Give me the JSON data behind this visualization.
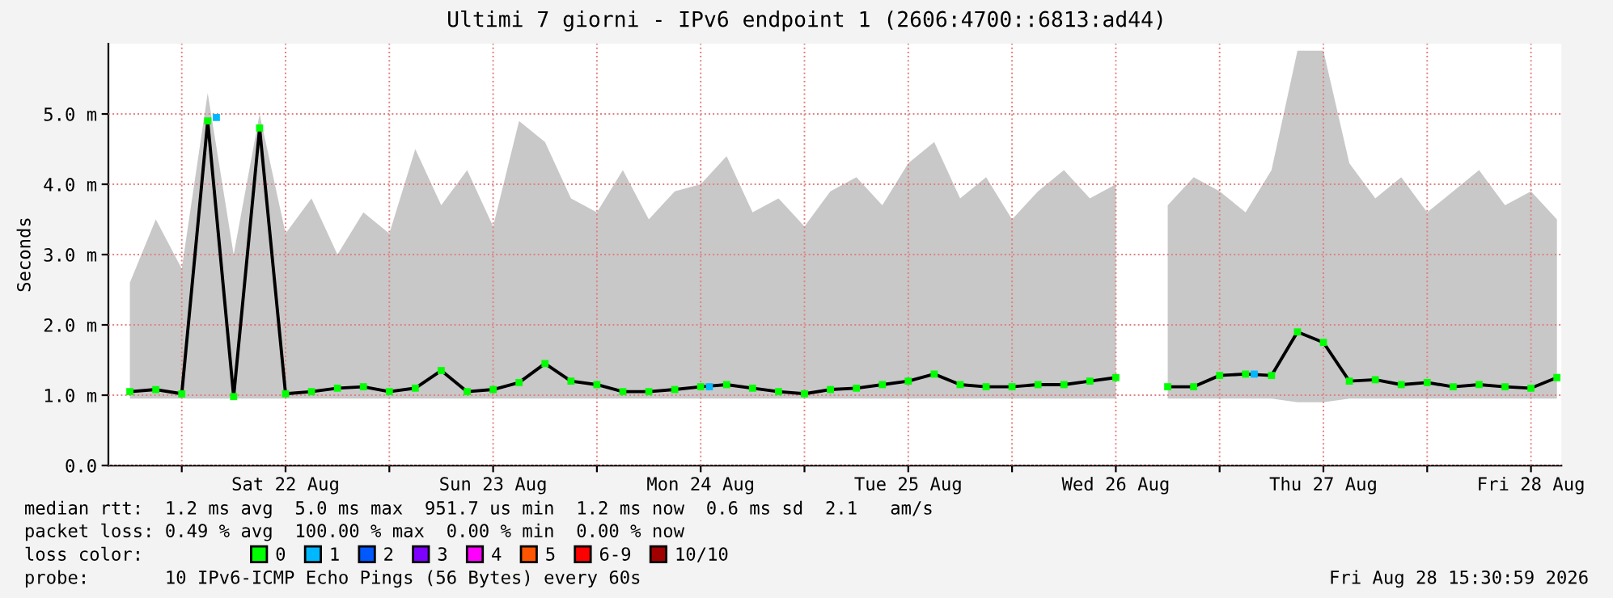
{
  "chart_data": {
    "type": "line",
    "title": "Ultimi 7 giorni - IPv6 endpoint 1 (2606:4700::6813:ad44)",
    "ylabel": "Seconds",
    "x": [
      "2026-08-21T18:00",
      "2026-08-21T21:00",
      "2026-08-22T00:00",
      "2026-08-22T03:00",
      "2026-08-22T06:00",
      "2026-08-22T09:00",
      "2026-08-22T12:00",
      "2026-08-22T15:00",
      "2026-08-22T18:00",
      "2026-08-22T21:00",
      "2026-08-23T00:00",
      "2026-08-23T03:00",
      "2026-08-23T06:00",
      "2026-08-23T09:00",
      "2026-08-23T12:00",
      "2026-08-23T15:00",
      "2026-08-23T18:00",
      "2026-08-23T21:00",
      "2026-08-24T00:00",
      "2026-08-24T03:00",
      "2026-08-24T06:00",
      "2026-08-24T09:00",
      "2026-08-24T12:00",
      "2026-08-24T15:00",
      "2026-08-24T18:00",
      "2026-08-24T21:00",
      "2026-08-25T00:00",
      "2026-08-25T03:00",
      "2026-08-25T06:00",
      "2026-08-25T09:00",
      "2026-08-25T12:00",
      "2026-08-25T15:00",
      "2026-08-25T18:00",
      "2026-08-25T21:00",
      "2026-08-26T00:00",
      "2026-08-26T03:00",
      "2026-08-26T06:00",
      "2026-08-26T09:00",
      "2026-08-26T12:00",
      "2026-08-26T15:00",
      "2026-08-26T18:00",
      "2026-08-26T21:00",
      "2026-08-27T00:00",
      "2026-08-27T03:00",
      "2026-08-27T06:00",
      "2026-08-27T09:00",
      "2026-08-27T12:00",
      "2026-08-27T15:00",
      "2026-08-27T18:00",
      "2026-08-27T21:00",
      "2026-08-28T00:00",
      "2026-08-28T03:00",
      "2026-08-28T06:00",
      "2026-08-28T09:00",
      "2026-08-28T12:00",
      "2026-08-28T15:00"
    ],
    "series": [
      {
        "type": "line",
        "color": "#000000",
        "values": [
          1.05,
          1.08,
          1.02,
          4.9,
          0.98,
          4.8,
          1.02,
          1.05,
          1.1,
          1.12,
          1.05,
          1.1,
          1.35,
          1.05,
          1.08,
          1.18,
          1.45,
          1.2,
          1.15,
          1.05,
          1.05,
          1.08,
          1.12,
          1.15,
          1.1,
          1.05,
          1.02,
          1.08,
          1.1,
          1.15,
          1.2,
          1.3,
          1.15,
          1.12,
          1.12,
          1.15,
          1.15,
          1.2,
          1.25,
          null,
          1.12,
          1.12,
          1.28,
          1.3,
          1.28,
          1.9,
          1.75,
          1.2,
          1.22,
          1.15,
          1.18,
          1.12,
          1.15,
          1.12,
          1.1,
          1.25
        ],
        "lower": [
          0.95,
          0.95,
          0.95,
          0.95,
          0.95,
          0.95,
          0.95,
          0.95,
          0.95,
          0.95,
          0.95,
          0.95,
          0.95,
          0.95,
          0.95,
          0.95,
          0.95,
          0.95,
          0.95,
          0.95,
          0.95,
          0.95,
          0.95,
          0.95,
          0.95,
          0.95,
          0.95,
          0.95,
          0.95,
          0.95,
          0.95,
          0.95,
          0.95,
          0.95,
          0.95,
          0.95,
          0.95,
          0.95,
          0.95,
          null,
          0.95,
          0.95,
          0.95,
          0.95,
          0.95,
          0.9,
          0.9,
          0.95,
          0.95,
          0.95,
          0.95,
          0.95,
          0.95,
          0.95,
          0.95,
          0.95
        ],
        "upper": [
          2.6,
          3.5,
          2.8,
          5.3,
          3.0,
          5.0,
          3.3,
          3.8,
          3.0,
          3.6,
          3.3,
          4.5,
          3.7,
          4.2,
          3.4,
          4.9,
          4.6,
          3.8,
          3.6,
          4.2,
          3.5,
          3.9,
          4.0,
          4.4,
          3.6,
          3.8,
          3.4,
          3.9,
          4.1,
          3.7,
          4.3,
          4.6,
          3.8,
          4.1,
          3.5,
          3.9,
          4.2,
          3.8,
          4.0,
          null,
          3.7,
          4.1,
          3.9,
          3.6,
          4.2,
          5.9,
          5.9,
          4.3,
          3.8,
          4.1,
          3.6,
          3.9,
          4.2,
          3.7,
          3.9,
          3.5
        ]
      },
      {
        "type": "scatter",
        "name": "0",
        "color": "#00ff00",
        "marker": "square",
        "values": [
          1.05,
          1.08,
          1.02,
          4.9,
          0.98,
          4.8,
          1.02,
          1.05,
          1.1,
          1.12,
          1.05,
          1.1,
          1.35,
          1.05,
          1.08,
          1.18,
          1.45,
          1.2,
          1.15,
          1.05,
          1.05,
          1.08,
          1.12,
          1.15,
          1.1,
          1.05,
          1.02,
          1.08,
          1.1,
          1.15,
          1.2,
          1.3,
          1.15,
          1.12,
          1.12,
          1.15,
          1.15,
          1.2,
          1.25,
          null,
          1.12,
          1.12,
          1.28,
          1.3,
          1.28,
          1.9,
          1.75,
          1.2,
          1.22,
          1.15,
          1.18,
          1.12,
          1.15,
          1.12,
          1.1,
          1.25
        ]
      },
      {
        "type": "scatter",
        "name": "1",
        "color": "#00b8ff",
        "marker": "square",
        "x": [
          "2026-08-22T04:00",
          "2026-08-24T13:00",
          "2026-08-27T04:00"
        ],
        "values": [
          4.95,
          1.12,
          1.3
        ]
      },
      {
        "type": "scatter",
        "name": "2",
        "color": "#0059ff",
        "marker": "square",
        "values": [
          null,
          null,
          null,
          null,
          null,
          null,
          null,
          null,
          null,
          null,
          null,
          null,
          null,
          null,
          null,
          null,
          null,
          null,
          null,
          null,
          null,
          null,
          null,
          null,
          null,
          null,
          null,
          null,
          null,
          null,
          null,
          null,
          null,
          null,
          null,
          null,
          null,
          null,
          null,
          null,
          null,
          null,
          null,
          null,
          null,
          null,
          null,
          null,
          null,
          null,
          null,
          null,
          null,
          null,
          null,
          null
        ]
      },
      {
        "type": "scatter",
        "name": "3",
        "color": "#7e00ff",
        "marker": "square",
        "values": [
          null,
          null,
          null,
          null,
          null,
          null,
          null,
          null,
          null,
          null,
          null,
          null,
          null,
          null,
          null,
          null,
          null,
          null,
          null,
          null,
          null,
          null,
          null,
          null,
          null,
          null,
          null,
          null,
          null,
          null,
          null,
          null,
          null,
          null,
          null,
          null,
          null,
          null,
          null,
          null,
          null,
          null,
          null,
          null,
          null,
          null,
          null,
          null,
          null,
          null,
          null,
          null,
          null,
          null,
          null,
          null
        ]
      },
      {
        "type": "scatter",
        "name": "4",
        "color": "#ff00ff",
        "marker": "square",
        "values": [
          null,
          null,
          null,
          null,
          null,
          null,
          null,
          null,
          null,
          null,
          null,
          null,
          null,
          null,
          null,
          null,
          null,
          null,
          null,
          null,
          null,
          null,
          null,
          null,
          null,
          null,
          null,
          null,
          null,
          null,
          null,
          null,
          null,
          null,
          null,
          null,
          null,
          null,
          null,
          null,
          null,
          null,
          null,
          null,
          null,
          null,
          null,
          null,
          null,
          null,
          null,
          null,
          null,
          null,
          null,
          null
        ]
      },
      {
        "type": "scatter",
        "name": "5",
        "color": "#ff5500",
        "marker": "square",
        "values": [
          null,
          null,
          null,
          null,
          null,
          null,
          null,
          null,
          null,
          null,
          null,
          null,
          null,
          null,
          null,
          null,
          null,
          null,
          null,
          null,
          null,
          null,
          null,
          null,
          null,
          null,
          null,
          null,
          null,
          null,
          null,
          null,
          null,
          null,
          null,
          null,
          null,
          null,
          null,
          null,
          null,
          null,
          null,
          null,
          null,
          null,
          null,
          null,
          null,
          null,
          null,
          null,
          null,
          null,
          null,
          null
        ]
      },
      {
        "type": "scatter",
        "name": "6-9",
        "color": "#ff0000",
        "marker": "square",
        "values": [
          null,
          null,
          null,
          null,
          null,
          null,
          null,
          null,
          null,
          null,
          null,
          null,
          null,
          null,
          null,
          null,
          null,
          null,
          null,
          null,
          null,
          null,
          null,
          null,
          null,
          null,
          null,
          null,
          null,
          null,
          null,
          null,
          null,
          null,
          null,
          null,
          null,
          null,
          null,
          null,
          null,
          null,
          null,
          null,
          null,
          null,
          null,
          null,
          null,
          null,
          null,
          null,
          null,
          null,
          null,
          null
        ]
      },
      {
        "type": "scatter",
        "name": "10/10",
        "color": "#a10000",
        "marker": "square",
        "values": [
          null,
          null,
          null,
          null,
          null,
          null,
          null,
          null,
          null,
          null,
          null,
          null,
          null,
          null,
          null,
          null,
          null,
          null,
          null,
          null,
          null,
          null,
          null,
          null,
          null,
          null,
          null,
          null,
          null,
          null,
          null,
          null,
          null,
          null,
          null,
          null,
          null,
          null,
          null,
          null,
          null,
          null,
          null,
          null,
          null,
          null,
          null,
          null,
          null,
          null,
          null,
          null,
          null,
          null,
          null,
          null
        ]
      }
    ],
    "legend": "bottom",
    "legend_title": "loss color:",
    "xlim": [
      "2026-08-21T15:31",
      "2026-08-28T15:31"
    ],
    "xticks": [
      {
        "value": "2026-08-22T00:00",
        "label": null
      },
      {
        "value": "2026-08-22T12:00",
        "label": "Sat 22 Aug"
      },
      {
        "value": "2026-08-23T00:00",
        "label": null
      },
      {
        "value": "2026-08-23T12:00",
        "label": "Sun 23 Aug"
      },
      {
        "value": "2026-08-24T00:00",
        "label": null
      },
      {
        "value": "2026-08-24T12:00",
        "label": "Mon 24 Aug"
      },
      {
        "value": "2026-08-25T00:00",
        "label": null
      },
      {
        "value": "2026-08-25T12:00",
        "label": "Tue 25 Aug"
      },
      {
        "value": "2026-08-26T00:00",
        "label": null
      },
      {
        "value": "2026-08-26T12:00",
        "label": "Wed 26 Aug"
      },
      {
        "value": "2026-08-27T00:00",
        "label": null
      },
      {
        "value": "2026-08-27T12:00",
        "label": "Thu 27 Aug"
      },
      {
        "value": "2026-08-28T00:00",
        "label": null
      },
      {
        "value": "2026-08-28T12:00",
        "label": "Fri 28 Aug"
      }
    ],
    "ylim": [
      0,
      6.0
    ],
    "yticks": [
      {
        "value": 0,
        "label": "0.0"
      },
      {
        "value": 1,
        "label": "1.0 m"
      },
      {
        "value": 2,
        "label": "2.0 m"
      },
      {
        "value": 3,
        "label": "3.0 m"
      },
      {
        "value": 4,
        "label": "4.0 m"
      },
      {
        "value": 5,
        "label": "5.0 m"
      }
    ],
    "grid": true,
    "annotations": [
      "median rtt:  1.2 ms avg  5.0 ms max  951.7 us min  1.2 ms now  0.6 ms sd  2.1   am/s",
      "packet loss: 0.49 % avg  100.00 % max  0.00 % min  0.00 % now",
      "probe:       10 IPv6-ICMP Echo Pings (56 Bytes) every 60s",
      "Fri Aug 28 15:30:59 2026"
    ]
  }
}
